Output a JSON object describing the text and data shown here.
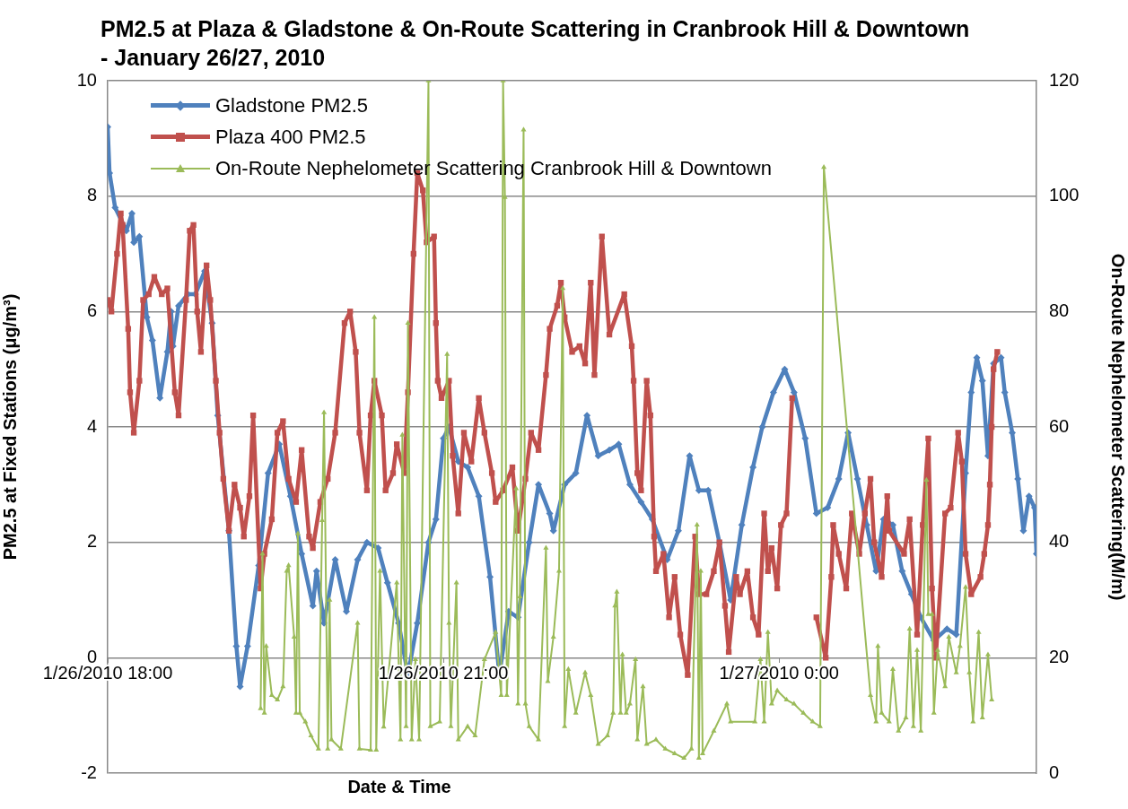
{
  "chart_data": {
    "type": "line",
    "title": "PM2.5 at Plaza & Gladstone & On-Route Scattering in Cranbrook Hill & Downtown - January 26/27, 2010",
    "xlabel": "Date & Time",
    "ylabel": "PM2.5 at Fixed Stations (μg/m³)",
    "y2label": "On-Route Nephelometer Scattering(M/m)",
    "xlim": [
      "2010-01-26T18:00",
      "2010-01-27T02:18"
    ],
    "xticks": [
      {
        "value": "2010-01-26T18:00",
        "label": "1/26/2010 18:00"
      },
      {
        "value": "2010-01-26T21:00",
        "label": "1/26/2010 21:00"
      },
      {
        "value": "2010-01-27T00:00",
        "label": "1/27/2010 0:00"
      }
    ],
    "ylim": [
      -2,
      10
    ],
    "yticks": [
      -2,
      0,
      2,
      4,
      6,
      8,
      10
    ],
    "y2lim": [
      0,
      120
    ],
    "y2ticks": [
      0,
      20,
      40,
      60,
      80,
      100,
      120
    ],
    "grid": "y",
    "legend": "top left",
    "series": [
      {
        "name": "Gladstone PM2.5",
        "color": "#4f81bd",
        "marker": "diamond",
        "x": [
          "2010-01-26T18:00",
          "2010-01-26T18:01",
          "2010-01-26T18:04",
          "2010-01-26T18:10",
          "2010-01-26T18:13",
          "2010-01-26T18:14",
          "2010-01-26T18:17",
          "2010-01-26T18:21",
          "2010-01-26T18:24",
          "2010-01-26T18:28",
          "2010-01-26T18:32",
          "2010-01-26T18:34",
          "2010-01-26T18:35",
          "2010-01-26T18:38",
          "2010-01-26T18:43",
          "2010-01-26T18:47",
          "2010-01-26T18:52",
          "2010-01-26T18:56",
          "2010-01-26T18:59",
          "2010-01-26T19:05",
          "2010-01-26T19:09",
          "2010-01-26T19:11",
          "2010-01-26T19:15",
          "2010-01-26T19:21",
          "2010-01-26T19:26",
          "2010-01-26T19:32",
          "2010-01-26T19:38",
          "2010-01-26T19:44",
          "2010-01-26T19:50",
          "2010-01-26T19:52",
          "2010-01-26T19:56",
          "2010-01-26T20:02",
          "2010-01-26T20:08",
          "2010-01-26T20:14",
          "2010-01-26T20:19",
          "2010-01-26T20:25",
          "2010-01-26T20:30",
          "2010-01-26T20:36",
          "2010-01-26T20:41",
          "2010-01-26T20:46",
          "2010-01-26T20:52",
          "2010-01-26T20:56",
          "2010-01-26T21:00",
          "2010-01-26T21:03",
          "2010-01-26T21:08",
          "2010-01-26T21:13",
          "2010-01-26T21:19",
          "2010-01-26T21:25",
          "2010-01-26T21:30",
          "2010-01-26T21:35",
          "2010-01-26T21:40",
          "2010-01-26T21:46",
          "2010-01-26T21:51",
          "2010-01-26T21:57",
          "2010-01-26T21:59",
          "2010-01-26T22:05",
          "2010-01-26T22:11",
          "2010-01-26T22:17",
          "2010-01-26T22:23",
          "2010-01-26T22:29",
          "2010-01-26T22:34",
          "2010-01-26T22:40",
          "2010-01-26T22:46",
          "2010-01-26T22:52",
          "2010-01-26T23:00",
          "2010-01-26T23:06",
          "2010-01-26T23:12",
          "2010-01-26T23:17",
          "2010-01-26T23:22",
          "2010-01-26T23:28",
          "2010-01-26T23:34",
          "2010-01-26T23:40",
          "2010-01-26T23:46",
          "2010-01-26T23:51",
          "2010-01-26T23:57",
          "2010-01-27T00:03",
          "2010-01-27T00:08",
          "2010-01-27T00:14",
          "2010-01-27T00:20",
          "2010-01-27T00:26",
          "2010-01-27T00:32",
          "2010-01-27T00:37",
          "2010-01-27T00:42",
          "2010-01-27T00:47",
          "2010-01-27T00:52",
          "2010-01-27T00:56",
          "2010-01-27T01:01",
          "2010-01-27T01:06",
          "2010-01-27T01:11",
          "2010-01-27T01:16",
          "2010-01-27T01:23",
          "2010-01-27T01:30",
          "2010-01-27T01:35",
          "2010-01-27T01:40",
          "2010-01-27T01:43",
          "2010-01-27T01:46",
          "2010-01-27T01:49",
          "2010-01-27T01:52",
          "2010-01-27T01:55",
          "2010-01-27T01:59",
          "2010-01-27T02:01",
          "2010-01-27T02:05",
          "2010-01-27T02:08",
          "2010-01-27T02:11",
          "2010-01-27T02:14",
          "2010-01-27T02:17",
          "2010-01-27T02:18"
        ],
        "values": [
          9.2,
          8.4,
          7.8,
          7.4,
          7.7,
          7.2,
          7.3,
          5.9,
          5.5,
          4.5,
          5.3,
          6.0,
          5.4,
          6.1,
          6.3,
          6.3,
          6.7,
          5.8,
          4.2,
          2.2,
          0.2,
          -0.5,
          0.2,
          1.6,
          3.2,
          3.7,
          2.8,
          1.8,
          0.9,
          1.5,
          0.6,
          1.7,
          0.8,
          1.7,
          2.0,
          1.9,
          1.3,
          0.6,
          -0.3,
          0.6,
          2.0,
          2.4,
          3.8,
          4.0,
          3.4,
          3.3,
          2.8,
          1.4,
          -0.3,
          0.8,
          0.7,
          2.0,
          3.0,
          2.5,
          2.2,
          3.0,
          3.2,
          4.2,
          3.5,
          3.6,
          3.7,
          3.0,
          2.7,
          2.4,
          1.7,
          2.2,
          3.5,
          2.9,
          2.9,
          2.0,
          1.0,
          2.3,
          3.3,
          4.0,
          4.6,
          5.0,
          4.6,
          3.8,
          2.5,
          2.6,
          3.1,
          3.9,
          3.1,
          2.3,
          1.5,
          2.4,
          2.3,
          1.5,
          1.1,
          0.7,
          0.3,
          0.5,
          0.4,
          3.2,
          4.6,
          5.2,
          4.8,
          3.5,
          5.1,
          5.2,
          4.6,
          3.9,
          3.1,
          2.2,
          2.8,
          2.6,
          1.8
        ]
      },
      {
        "name": "Plaza 400 PM2.5",
        "color": "#c0504d",
        "marker": "square",
        "x": [
          "2010-01-26T18:00",
          "2010-01-26T18:02",
          "2010-01-26T18:05",
          "2010-01-26T18:07",
          "2010-01-26T18:08",
          "2010-01-26T18:11",
          "2010-01-26T18:12",
          "2010-01-26T18:14",
          "2010-01-26T18:17",
          "2010-01-26T18:19",
          "2010-01-26T18:22",
          "2010-01-26T18:25",
          "2010-01-26T18:29",
          "2010-01-26T18:32",
          "2010-01-26T18:36",
          "2010-01-26T18:38",
          "2010-01-26T18:42",
          "2010-01-26T18:44",
          "2010-01-26T18:46",
          "2010-01-26T18:48",
          "2010-01-26T18:50",
          "2010-01-26T18:53",
          "2010-01-26T18:55",
          "2010-01-26T18:58",
          "2010-01-26T19:00",
          "2010-01-26T19:02",
          "2010-01-26T19:05",
          "2010-01-26T19:08",
          "2010-01-26T19:11",
          "2010-01-26T19:13",
          "2010-01-26T19:16",
          "2010-01-26T19:18",
          "2010-01-26T19:22",
          "2010-01-26T19:24",
          "2010-01-26T19:28",
          "2010-01-26T19:31",
          "2010-01-26T19:34",
          "2010-01-26T19:37",
          "2010-01-26T19:41",
          "2010-01-26T19:44",
          "2010-01-26T19:48",
          "2010-01-26T19:50",
          "2010-01-26T19:54",
          "2010-01-26T19:58",
          "2010-01-26T20:02",
          "2010-01-26T20:07",
          "2010-01-26T20:10",
          "2010-01-26T20:13",
          "2010-01-26T20:15",
          "2010-01-26T20:19",
          "2010-01-26T20:21",
          "2010-01-26T20:23",
          "2010-01-26T20:27",
          "2010-01-26T20:29",
          "2010-01-26T20:33",
          "2010-01-26T20:35",
          "2010-01-26T20:39",
          "2010-01-26T20:41",
          "2010-01-26T20:44",
          "2010-01-26T20:46",
          "2010-01-26T20:49",
          "2010-01-26T20:51",
          "2010-01-26T20:55",
          "2010-01-26T20:56",
          "2010-01-26T20:57",
          "2010-01-26T20:59",
          "2010-01-26T21:03",
          "2010-01-26T21:05",
          "2010-01-26T21:08",
          "2010-01-26T21:11",
          "2010-01-26T21:15",
          "2010-01-26T21:19",
          "2010-01-26T21:22",
          "2010-01-26T21:26",
          "2010-01-26T21:28",
          "2010-01-26T21:32",
          "2010-01-26T21:37",
          "2010-01-26T21:40",
          "2010-01-26T21:44",
          "2010-01-26T21:47",
          "2010-01-26T21:51",
          "2010-01-26T21:55",
          "2010-01-26T21:57",
          "2010-01-26T22:01",
          "2010-01-26T22:03",
          "2010-01-26T22:05",
          "2010-01-26T22:09",
          "2010-01-26T22:13",
          "2010-01-26T22:16",
          "2010-01-26T22:19",
          "2010-01-26T22:21",
          "2010-01-26T22:25",
          "2010-01-26T22:29",
          "2010-01-26T22:37",
          "2010-01-26T22:41",
          "2010-01-26T22:42",
          "2010-01-26T22:44",
          "2010-01-26T22:46",
          "2010-01-26T22:49",
          "2010-01-26T22:51",
          "2010-01-26T22:53",
          "2010-01-26T22:54",
          "2010-01-26T22:58",
          "2010-01-26T23:01",
          "2010-01-26T23:04",
          "2010-01-26T23:07",
          "2010-01-26T23:11",
          "2010-01-26T23:15",
          "2010-01-26T23:17",
          "2010-01-26T23:21",
          "2010-01-26T23:25",
          "2010-01-26T23:28",
          "2010-01-26T23:31",
          "2010-01-26T23:33",
          "2010-01-26T23:37",
          "2010-01-26T23:39",
          "2010-01-26T23:43",
          "2010-01-26T23:46",
          "2010-01-26T23:49",
          "2010-01-26T23:52",
          "2010-01-26T23:54",
          "2010-01-26T23:56",
          "2010-01-26T23:59",
          "2010-01-27T00:01",
          "2010-01-27T00:04",
          "2010-01-27T00:07",
          "2010-01-27T00:12",
          "2010-01-27T00:20",
          "2010-01-27T00:25",
          "2010-01-27T00:28",
          "2010-01-27T00:29",
          "2010-01-27T00:32",
          "2010-01-27T00:36",
          "2010-01-27T00:39",
          "2010-01-27T00:43",
          "2010-01-27T00:46",
          "2010-01-27T00:49",
          "2010-01-27T00:51",
          "2010-01-27T00:55",
          "2010-01-27T00:58",
          "2010-01-27T00:59",
          "2010-01-27T01:07",
          "2010-01-27T01:10",
          "2010-01-27T01:14",
          "2010-01-27T01:17",
          "2010-01-27T01:20",
          "2010-01-27T01:22",
          "2010-01-27T01:24",
          "2010-01-27T01:29",
          "2010-01-27T01:32",
          "2010-01-27T01:36",
          "2010-01-27T01:38",
          "2010-01-27T01:40",
          "2010-01-27T01:43",
          "2010-01-27T01:48",
          "2010-01-27T01:50",
          "2010-01-27T01:52",
          "2010-01-27T01:53",
          "2010-01-27T01:54",
          "2010-01-27T01:55",
          "2010-01-27T01:57"
        ],
        "values": [
          6.2,
          6.0,
          7.0,
          7.7,
          7.5,
          5.7,
          4.6,
          3.9,
          4.8,
          6.2,
          6.3,
          6.6,
          6.3,
          6.4,
          4.6,
          4.2,
          6.2,
          7.4,
          7.5,
          6.0,
          5.3,
          6.8,
          6.2,
          4.8,
          3.9,
          3.1,
          2.2,
          3.0,
          2.6,
          2.1,
          2.8,
          4.2,
          1.2,
          1.8,
          2.4,
          3.9,
          4.1,
          3.1,
          2.7,
          3.6,
          2.1,
          1.9,
          2.7,
          3.1,
          3.9,
          5.8,
          6.0,
          5.3,
          3.9,
          2.9,
          4.2,
          4.8,
          4.2,
          2.9,
          3.2,
          3.7,
          3.2,
          4.6,
          7.0,
          8.4,
          8.1,
          7.2,
          7.3,
          5.8,
          4.8,
          4.5,
          4.8,
          3.5,
          2.5,
          3.9,
          3.4,
          4.5,
          3.9,
          3.2,
          2.7,
          2.9,
          3.3,
          2.2,
          3.1,
          3.9,
          3.6,
          4.9,
          5.7,
          6.1,
          6.5,
          5.9,
          5.3,
          5.4,
          5.1,
          6.5,
          4.9,
          7.3,
          5.6,
          6.3,
          5.4,
          4.8,
          3.2,
          2.9,
          4.8,
          4.2,
          2.1,
          1.5,
          1.8,
          0.7,
          1.4,
          0.4,
          -0.3,
          2.1,
          1.1,
          1.1,
          1.5,
          2.0,
          0.9,
          0.1,
          1.4,
          1.1,
          1.5,
          0.7,
          0.4,
          2.5,
          1.5,
          1.9,
          1.2,
          2.3,
          2.5,
          4.5,
          null,
          0.7,
          0.0,
          1.4,
          2.3,
          1.8,
          1.2,
          2.5,
          1.8,
          2.5,
          3.1,
          2.0,
          1.4,
          2.8,
          2.2,
          1.8,
          2.4,
          0.4,
          2.3,
          3.8,
          1.2,
          0.0,
          2.5,
          2.6,
          3.9,
          3.4,
          1.8,
          1.1,
          1.4,
          1.8,
          2.3,
          3.0,
          4.0,
          5.0,
          5.3
        ]
      },
      {
        "name": "On-Route Nephelometer Scattering Cranbrook Hill & Downtown",
        "color": "#9bbb59",
        "marker": "triangle",
        "axis": "y2",
        "x": [
          "2010-01-26T19:22",
          "2010-01-26T19:23",
          "2010-01-26T19:24",
          "2010-01-26T19:25",
          "2010-01-26T19:28",
          "2010-01-26T19:31",
          "2010-01-26T19:34",
          "2010-01-26T19:36",
          "2010-01-26T19:37",
          "2010-01-26T19:40",
          "2010-01-26T19:41",
          "2010-01-26T19:42",
          "2010-01-26T19:43",
          "2010-01-26T19:46",
          "2010-01-26T19:49",
          "2010-01-26T19:53",
          "2010-01-26T19:55",
          "2010-01-26T19:56",
          "2010-01-26T19:58",
          "2010-01-26T19:59",
          "2010-01-26T20:00",
          "2010-01-26T20:05",
          "2010-01-26T20:14",
          "2010-01-26T20:15",
          "2010-01-26T20:21",
          "2010-01-26T20:23",
          "2010-01-26T20:24",
          "2010-01-26T20:26",
          "2010-01-26T20:28",
          "2010-01-26T20:35",
          "2010-01-26T20:37",
          "2010-01-26T20:38",
          "2010-01-26T20:40",
          "2010-01-26T20:41",
          "2010-01-26T20:43",
          "2010-01-26T20:45",
          "2010-01-26T20:47",
          "2010-01-26T20:52",
          "2010-01-26T20:53",
          "2010-01-26T20:58",
          "2010-01-26T21:02",
          "2010-01-26T21:03",
          "2010-01-26T21:04",
          "2010-01-26T21:07",
          "2010-01-26T21:08",
          "2010-01-26T21:13",
          "2010-01-26T21:17",
          "2010-01-26T21:22",
          "2010-01-26T21:28",
          "2010-01-26T21:31",
          "2010-01-26T21:32",
          "2010-01-26T21:33",
          "2010-01-26T21:34",
          "2010-01-26T21:39",
          "2010-01-26T21:40",
          "2010-01-26T21:41",
          "2010-01-26T21:43",
          "2010-01-26T21:44",
          "2010-01-26T21:46",
          "2010-01-26T21:51",
          "2010-01-26T21:55",
          "2010-01-26T21:56",
          "2010-01-26T21:59",
          "2010-01-26T22:02",
          "2010-01-26T22:04",
          "2010-01-26T22:05",
          "2010-01-26T22:07",
          "2010-01-26T22:11",
          "2010-01-26T22:16",
          "2010-01-26T22:19",
          "2010-01-26T22:23",
          "2010-01-26T22:28",
          "2010-01-26T22:31",
          "2010-01-26T22:32",
          "2010-01-26T22:33",
          "2010-01-26T22:35",
          "2010-01-26T22:36",
          "2010-01-26T22:38",
          "2010-01-26T22:40",
          "2010-01-26T22:43",
          "2010-01-26T22:44",
          "2010-01-26T22:47",
          "2010-01-26T22:49",
          "2010-01-26T22:54",
          "2010-01-26T22:59",
          "2010-01-26T23:04",
          "2010-01-26T23:09",
          "2010-01-26T23:13",
          "2010-01-26T23:16",
          "2010-01-26T23:17",
          "2010-01-26T23:18",
          "2010-01-26T23:19",
          "2010-01-26T23:25",
          "2010-01-26T23:32",
          "2010-01-26T23:34",
          "2010-01-26T23:47",
          "2010-01-26T23:50",
          "2010-01-26T23:52",
          "2010-01-26T23:54",
          "2010-01-26T23:56",
          "2010-01-26T23:59",
          "2010-01-27T00:04",
          "2010-01-27T00:08",
          "2010-01-27T00:13",
          "2010-01-27T00:18",
          "2010-01-27T00:22",
          "2010-01-27T00:24",
          "2010-01-27T00:49",
          "2010-01-27T00:52",
          "2010-01-27T00:53",
          "2010-01-27T00:55",
          "2010-01-27T00:59",
          "2010-01-27T01:01",
          "2010-01-27T01:04",
          "2010-01-27T01:08",
          "2010-01-27T01:10",
          "2010-01-27T01:12",
          "2010-01-27T01:14",
          "2010-01-27T01:16",
          "2010-01-27T01:19",
          "2010-01-27T01:20",
          "2010-01-27T01:22",
          "2010-01-27T01:23",
          "2010-01-27T01:25",
          "2010-01-27T01:29",
          "2010-01-27T01:31",
          "2010-01-27T01:35",
          "2010-01-27T01:37",
          "2010-01-27T01:40",
          "2010-01-27T01:42",
          "2010-01-27T01:44",
          "2010-01-27T01:47",
          "2010-01-27T01:49",
          "2010-01-27T01:52",
          "2010-01-27T01:54"
        ],
        "values": [
          11.2,
          38,
          10.4,
          22,
          13.5,
          12.7,
          15,
          35,
          36,
          23.6,
          10.4,
          41.5,
          10.4,
          8.9,
          6.5,
          4.2,
          43.8,
          62.5,
          4.2,
          30,
          5.8,
          4.2,
          26,
          4.2,
          4,
          79,
          4,
          35,
          8,
          33,
          5.8,
          58.6,
          8.1,
          78,
          5.8,
          19.7,
          5.8,
          120,
          8.1,
          8.9,
          72.6,
          26,
          8.1,
          33,
          5.8,
          8.1,
          6.5,
          19.7,
          24.4,
          13.5,
          120,
          99.8,
          13.5,
          49.3,
          12,
          30.6,
          111.5,
          12,
          8.1,
          5.8,
          39,
          15.9,
          23.6,
          35,
          84,
          8.1,
          18,
          10.4,
          17.4,
          13.5,
          5,
          6.5,
          10.4,
          29,
          31.4,
          10.4,
          20.5,
          10.4,
          12,
          19.7,
          5.8,
          15,
          5,
          5.8,
          4.2,
          3.4,
          2.6,
          4.2,
          43,
          2.6,
          35,
          3.4,
          7.3,
          12,
          8.9,
          8.9,
          19.7,
          8.9,
          24.4,
          12,
          14.3,
          12.7,
          12,
          10.4,
          8.9,
          8.1,
          105,
          13.5,
          8.9,
          22,
          10.4,
          8.9,
          18,
          7.3,
          9.6,
          25,
          8.1,
          21.3,
          7.3,
          50.8,
          27.5,
          27.5,
          10.4,
          21.3,
          15,
          23.6,
          17.4,
          22,
          32.2,
          17.4,
          8.9,
          24.4,
          9.6,
          20.5,
          12.7
        ]
      }
    ]
  }
}
